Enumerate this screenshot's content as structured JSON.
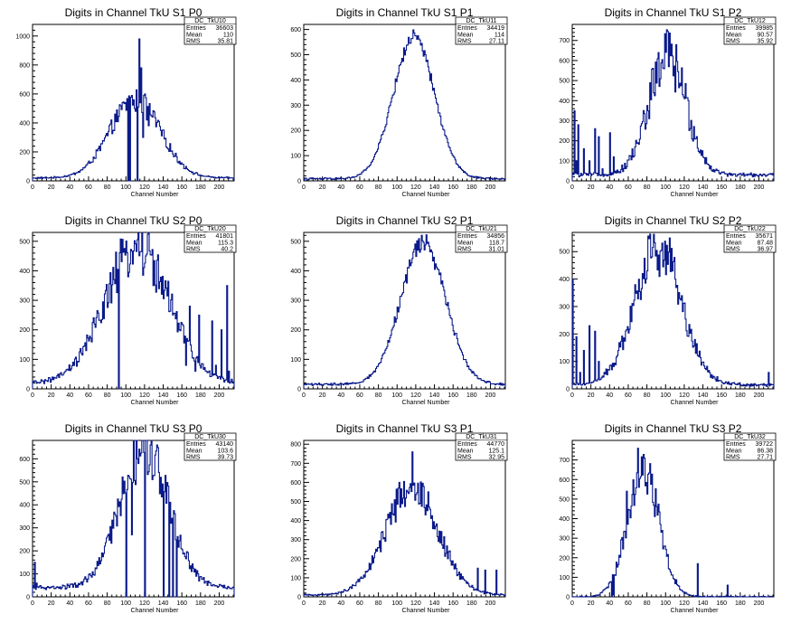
{
  "colors": {
    "histogram": "#0a1a8a",
    "frame": "#000000",
    "background": "#ffffff"
  },
  "chart_data": [
    {
      "type": "histogram",
      "title": "Digits in Channel TkU S1 P0",
      "xlabel": "Channel Number",
      "xlim": [
        0,
        216
      ],
      "ylim": [
        0,
        1080
      ],
      "xticks": [
        0,
        20,
        40,
        60,
        80,
        100,
        120,
        140,
        160,
        180,
        200
      ],
      "yticks": [
        0,
        200,
        400,
        600,
        800,
        1000
      ],
      "stats": {
        "name": "DC_TkU10",
        "entries": "36603",
        "mean": "110",
        "rms": "35.81"
      },
      "profile": {
        "kind": "gauss",
        "peak": 540,
        "center": 110,
        "width": 27,
        "base": 20,
        "noise": 0.14,
        "spikes": [
          [
            102,
            0
          ],
          [
            104,
            0
          ],
          [
            106,
            590
          ],
          [
            108,
            560
          ],
          [
            110,
            480
          ],
          [
            112,
            0
          ],
          [
            114,
            980
          ],
          [
            116,
            780
          ],
          [
            118,
            300
          ],
          [
            120,
            600
          ],
          [
            122,
            420
          ],
          [
            124,
            380
          ]
        ]
      }
    },
    {
      "type": "histogram",
      "title": "Digits in Channel TkU S1 P1",
      "xlabel": "Channel Number",
      "xlim": [
        0,
        216
      ],
      "ylim": [
        0,
        620
      ],
      "xticks": [
        0,
        20,
        40,
        60,
        80,
        100,
        120,
        140,
        160,
        180,
        200
      ],
      "yticks": [
        0,
        100,
        200,
        300,
        400,
        500,
        600
      ],
      "stats": {
        "name": "DC_TkU11",
        "entries": "34419",
        "mean": "114",
        "rms": "27.11"
      },
      "profile": {
        "kind": "gauss",
        "peak": 560,
        "center": 118,
        "width": 22,
        "base": 8,
        "noise": 0.05,
        "spikes": []
      }
    },
    {
      "type": "histogram",
      "title": "Digits in Channel TkU S1 P2",
      "xlabel": "Channel Number",
      "xlim": [
        0,
        216
      ],
      "ylim": [
        0,
        780
      ],
      "xticks": [
        0,
        20,
        40,
        60,
        80,
        100,
        120,
        140,
        160,
        180,
        200
      ],
      "yticks": [
        0,
        100,
        200,
        300,
        400,
        500,
        600,
        700
      ],
      "stats": {
        "name": "DC_TkU12",
        "entries": "39985",
        "mean": "90.57",
        "rms": "35.92"
      },
      "profile": {
        "kind": "gauss",
        "peak": 590,
        "center": 102,
        "width": 20,
        "base": 30,
        "noise": 0.25,
        "spikes": [
          [
            2,
            350
          ],
          [
            4,
            100
          ],
          [
            6,
            280
          ],
          [
            12,
            160
          ],
          [
            18,
            100
          ],
          [
            24,
            260
          ],
          [
            28,
            220
          ],
          [
            32,
            60
          ],
          [
            40,
            240
          ],
          [
            44,
            120
          ]
        ]
      }
    },
    {
      "type": "histogram",
      "title": "Digits in Channel TkU S2 P0",
      "xlabel": "Channel Number",
      "xlim": [
        0,
        216
      ],
      "ylim": [
        0,
        530
      ],
      "xticks": [
        0,
        20,
        40,
        60,
        80,
        100,
        120,
        140,
        160,
        180,
        200
      ],
      "yticks": [
        0,
        100,
        200,
        300,
        400,
        500
      ],
      "stats": {
        "name": "DC_TkU20",
        "entries": "41801",
        "mean": "115.3",
        "rms": "40.2"
      },
      "profile": {
        "kind": "gauss",
        "peak": 460,
        "center": 112,
        "width": 34,
        "base": 20,
        "noise": 0.2,
        "spikes": [
          [
            92,
            0
          ],
          [
            164,
            80
          ],
          [
            168,
            280
          ],
          [
            174,
            60
          ],
          [
            178,
            250
          ],
          [
            186,
            60
          ],
          [
            192,
            230
          ],
          [
            196,
            80
          ],
          [
            202,
            200
          ],
          [
            208,
            350
          ],
          [
            210,
            60
          ]
        ]
      }
    },
    {
      "type": "histogram",
      "title": "Digits in Channel TkU S2 P1",
      "xlabel": "Channel Number",
      "xlim": [
        0,
        216
      ],
      "ylim": [
        0,
        530
      ],
      "xticks": [
        0,
        20,
        40,
        60,
        80,
        100,
        120,
        140,
        160,
        180,
        200
      ],
      "yticks": [
        0,
        100,
        200,
        300,
        400,
        500
      ],
      "stats": {
        "name": "DC_TkU21",
        "entries": "34856",
        "mean": "118.7",
        "rms": "31.01"
      },
      "profile": {
        "kind": "gauss",
        "peak": 480,
        "center": 128,
        "width": 24,
        "base": 15,
        "noise": 0.06,
        "spikes": []
      }
    },
    {
      "type": "histogram",
      "title": "Digits in Channel TkU S2 P2",
      "xlabel": "Channel Number",
      "xlim": [
        0,
        216
      ],
      "ylim": [
        0,
        570
      ],
      "xticks": [
        0,
        20,
        40,
        60,
        80,
        100,
        120,
        140,
        160,
        180,
        200
      ],
      "yticks": [
        0,
        100,
        200,
        300,
        400,
        500
      ],
      "stats": {
        "name": "DC_TkU22",
        "entries": "35671",
        "mean": "87.48",
        "rms": "36.97"
      },
      "profile": {
        "kind": "gauss",
        "peak": 500,
        "center": 92,
        "width": 25,
        "base": 15,
        "noise": 0.2,
        "spikes": [
          [
            0,
            400
          ],
          [
            4,
            190
          ],
          [
            8,
            60
          ],
          [
            12,
            140
          ],
          [
            18,
            230
          ],
          [
            24,
            210
          ],
          [
            28,
            100
          ],
          [
            34,
            60
          ],
          [
            210,
            60
          ]
        ]
      }
    },
    {
      "type": "histogram",
      "title": "Digits in Channel TkU S3 P0",
      "xlabel": "Channel Number",
      "xlim": [
        0,
        216
      ],
      "ylim": [
        0,
        680
      ],
      "xticks": [
        0,
        20,
        40,
        60,
        80,
        100,
        120,
        140,
        160,
        180,
        200
      ],
      "yticks": [
        0,
        100,
        200,
        300,
        400,
        500,
        600
      ],
      "stats": {
        "name": "DC_TkU30",
        "entries": "43140",
        "mean": "103.6",
        "rms": "39.73"
      },
      "profile": {
        "kind": "gauss",
        "peak": 600,
        "center": 120,
        "width": 26,
        "base": 40,
        "noise": 0.2,
        "spikes": [
          [
            100,
            0
          ],
          [
            106,
            270
          ],
          [
            120,
            0
          ],
          [
            126,
            660
          ],
          [
            140,
            0
          ],
          [
            146,
            0
          ],
          [
            150,
            0
          ],
          [
            154,
            0
          ],
          [
            2,
            150
          ],
          [
            4,
            60
          ]
        ]
      }
    },
    {
      "type": "histogram",
      "title": "Digits in Channel TkU S3 P1",
      "xlabel": "Channel Number",
      "xlim": [
        0,
        216
      ],
      "ylim": [
        0,
        820
      ],
      "xticks": [
        0,
        20,
        40,
        60,
        80,
        100,
        120,
        140,
        160,
        180,
        200
      ],
      "yticks": [
        0,
        100,
        200,
        300,
        400,
        500,
        600,
        700,
        800
      ],
      "stats": {
        "name": "DC_TkU31",
        "entries": "44770",
        "mean": "125.1",
        "rms": "32.95"
      },
      "profile": {
        "kind": "gauss",
        "peak": 560,
        "center": 116,
        "width": 28,
        "base": 10,
        "noise": 0.18,
        "spikes": [
          [
            116,
            760
          ],
          [
            102,
            600
          ],
          [
            186,
            150
          ],
          [
            194,
            140
          ],
          [
            206,
            140
          ]
        ]
      }
    },
    {
      "type": "histogram",
      "title": "Digits in Channel TkU S3 P2",
      "xlabel": "Channel Number",
      "xlim": [
        0,
        216
      ],
      "ylim": [
        0,
        800
      ],
      "xticks": [
        0,
        20,
        40,
        60,
        80,
        100,
        120,
        140,
        160,
        180,
        200
      ],
      "yticks": [
        0,
        100,
        200,
        300,
        400,
        500,
        600,
        700
      ],
      "stats": {
        "name": "DC_TkU32",
        "entries": "39722",
        "mean": "86.38",
        "rms": "27.71"
      },
      "profile": {
        "kind": "gauss",
        "peak": 650,
        "center": 76,
        "width": 17,
        "base": 0,
        "noise": 0.18,
        "spikes": [
          [
            42,
            0
          ],
          [
            44,
            10
          ],
          [
            46,
            110
          ],
          [
            70,
            760
          ],
          [
            58,
            540
          ],
          [
            166,
            60
          ],
          [
            134,
            170
          ]
        ]
      }
    }
  ],
  "labels": {
    "entries": "Entries",
    "mean": "Mean",
    "rms": "RMS"
  }
}
